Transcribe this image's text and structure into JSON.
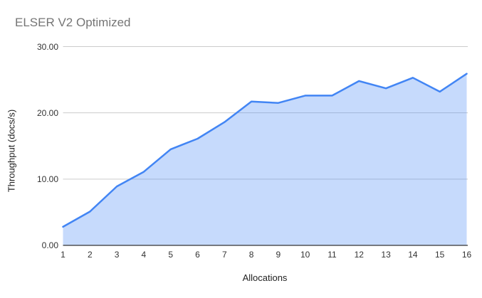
{
  "title": "ELSER V2 Optimized",
  "colors": {
    "line": "#4285f4",
    "fill": "rgba(66,133,244,0.30)",
    "gridline": "#cccccc",
    "axis_line": "#333333",
    "title_text": "#757575",
    "tick_text": "#333333"
  },
  "chart_data": {
    "type": "area",
    "title": "ELSER V2 Optimized",
    "xlabel": "Allocations",
    "ylabel": "Throughput (docs/s)",
    "x": [
      1,
      2,
      3,
      4,
      5,
      6,
      7,
      8,
      9,
      10,
      11,
      12,
      13,
      14,
      15,
      16
    ],
    "values": [
      2.8,
      5.1,
      8.9,
      11.1,
      14.5,
      16.1,
      18.6,
      21.7,
      21.5,
      22.6,
      22.6,
      24.8,
      23.7,
      25.3,
      23.2,
      25.9
    ],
    "series_name": "Throughput (docs/s)",
    "ylim": [
      0,
      30
    ],
    "yticks": [
      0,
      10,
      20,
      30
    ],
    "ytick_labels": [
      "0.00",
      "10.00",
      "20.00",
      "30.00"
    ],
    "xtick_labels": [
      "1",
      "2",
      "3",
      "4",
      "5",
      "6",
      "7",
      "8",
      "9",
      "10",
      "11",
      "12",
      "13",
      "14",
      "15",
      "16"
    ],
    "grid": "horizontal",
    "legend": "none"
  }
}
